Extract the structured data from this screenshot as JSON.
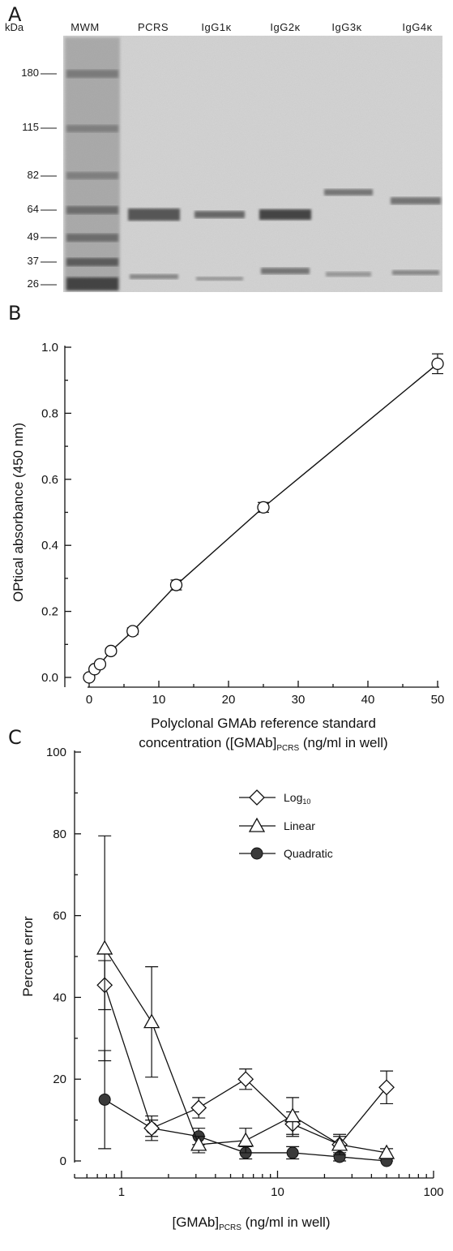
{
  "panel_a": {
    "letter": "A",
    "unit": "kDa",
    "lanes": [
      "MWM",
      "PCRS",
      "IgG1κ",
      "IgG2κ",
      "IgG3κ",
      "IgG4κ"
    ],
    "markers": [
      "180",
      "115",
      "82",
      "64",
      "49",
      "37",
      "26"
    ]
  },
  "panel_b": {
    "letter": "B"
  },
  "panel_c": {
    "letter": "C"
  },
  "chart_data": [
    {
      "type": "line",
      "ylabel": "OPtical absorbance (450 nm)",
      "xlabel_line1": "Polyclonal GMAb reference standard",
      "xlabel_line2_prefix": "concentration ([GMAb]",
      "xlabel_line2_sub": "PCRS",
      "xlabel_line2_suffix": " (ng/ml in well)",
      "xlim": [
        0,
        50
      ],
      "ylim": [
        0,
        1.0
      ],
      "xticks": [
        0,
        10,
        20,
        30,
        40,
        50
      ],
      "yticks": [
        "0.0",
        "0.2",
        "0.4",
        "0.6",
        "0.8",
        "1.0"
      ],
      "series": [
        {
          "x": [
            0,
            0.78,
            1.56,
            3.125,
            6.25,
            12.5,
            25,
            50
          ],
          "y": [
            0.0,
            0.025,
            0.04,
            0.08,
            0.14,
            0.28,
            0.515,
            0.95
          ],
          "err": [
            0.005,
            0.005,
            0.005,
            0.008,
            0.01,
            0.015,
            0.015,
            0.03
          ],
          "marker": "circle-open"
        }
      ]
    },
    {
      "type": "line",
      "ylabel": "Percent error",
      "xlabel_prefix": "[GMAb]",
      "xlabel_sub": "PCRS",
      "xlabel_suffix": " (ng/ml in well)",
      "xscale": "log",
      "xlim": [
        0.5,
        100
      ],
      "ylim": [
        0,
        100
      ],
      "xticks": [
        "1",
        "10",
        "100"
      ],
      "yticks": [
        "0",
        "20",
        "40",
        "60",
        "80",
        "100"
      ],
      "legend_position": "right",
      "series": [
        {
          "name_main": "Log",
          "name_sub": "10",
          "marker": "diamond-open",
          "x": [
            0.78,
            1.56,
            3.125,
            6.25,
            12.5,
            25,
            50
          ],
          "y": [
            43,
            8,
            13,
            20,
            9,
            4,
            18
          ],
          "err": [
            6,
            2,
            2.5,
            2.5,
            3,
            2,
            4
          ]
        },
        {
          "name": "Linear",
          "marker": "triangle-open",
          "x": [
            0.78,
            1.56,
            3.125,
            6.25,
            12.5,
            25,
            50
          ],
          "y": [
            52,
            34,
            4,
            5,
            11,
            4,
            2
          ],
          "err": [
            27.5,
            13.5,
            2,
            3,
            4.5,
            2.5,
            1
          ]
        },
        {
          "name": "Quadratic",
          "marker": "circle-filled",
          "x": [
            0.78,
            1.56,
            3.125,
            6.25,
            12.5,
            25,
            50
          ],
          "y": [
            15,
            8,
            6,
            2,
            2,
            1,
            0
          ],
          "err": [
            12,
            3,
            2,
            1.5,
            1.5,
            1,
            0.5
          ]
        }
      ]
    }
  ]
}
